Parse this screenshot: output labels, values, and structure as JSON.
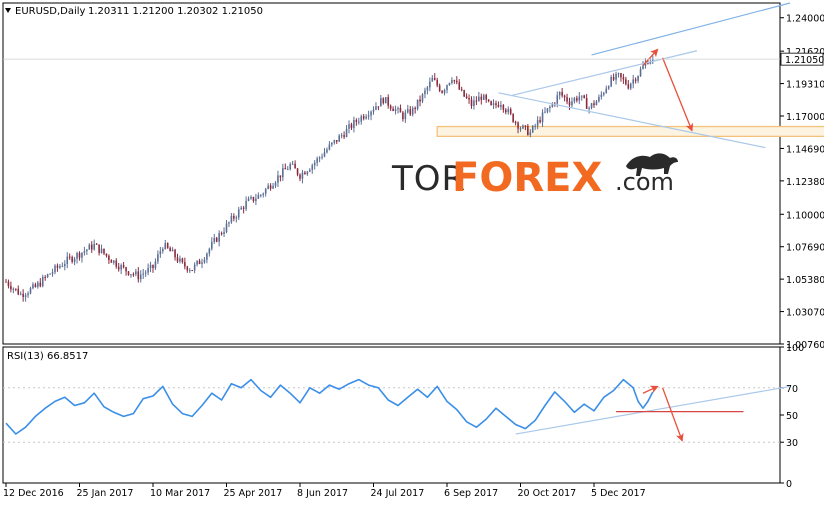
{
  "chart_data": [
    {
      "type": "candlestick",
      "symbol_label": "EURUSD,Daily",
      "ohlc_label": "1.20311 1.21200 1.20302 1.21050",
      "current_price": 1.2105,
      "current_price_label": "1.21050",
      "ylim": [
        1.0076,
        1.2505
      ],
      "y_ticks": [
        "1.24000",
        "1.21620",
        "1.19310",
        "1.17000",
        "1.14690",
        "1.12380",
        "1.10000",
        "1.07690",
        "1.05380",
        "1.03070",
        "1.00760"
      ],
      "y_tick_values": [
        1.24,
        1.2162,
        1.1931,
        1.17,
        1.1469,
        1.1238,
        1.1,
        1.0769,
        1.0538,
        1.0307,
        1.0076
      ],
      "x_ticks": [
        "12 Dec 2016",
        "25 Jan 2017",
        "10 Mar 2017",
        "25 Apr 2017",
        "8 Jun 2017",
        "24 Jul 2017",
        "6 Sep 2017",
        "20 Oct 2017",
        "5 Dec 2017"
      ],
      "x_tick_index": [
        0,
        30,
        60,
        90,
        120,
        150,
        180,
        210,
        240
      ],
      "close_path": [
        [
          0,
          1.052
        ],
        [
          6,
          1.043
        ],
        [
          12,
          1.048
        ],
        [
          18,
          1.058
        ],
        [
          24,
          1.066
        ],
        [
          30,
          1.072
        ],
        [
          36,
          1.078
        ],
        [
          42,
          1.069
        ],
        [
          48,
          1.061
        ],
        [
          54,
          1.056
        ],
        [
          60,
          1.062
        ],
        [
          64,
          1.078
        ],
        [
          68,
          1.072
        ],
        [
          72,
          1.064
        ],
        [
          76,
          1.061
        ],
        [
          80,
          1.068
        ],
        [
          86,
          1.083
        ],
        [
          92,
          1.096
        ],
        [
          98,
          1.108
        ],
        [
          104,
          1.114
        ],
        [
          110,
          1.125
        ],
        [
          116,
          1.135
        ],
        [
          120,
          1.128
        ],
        [
          126,
          1.137
        ],
        [
          132,
          1.148
        ],
        [
          138,
          1.158
        ],
        [
          144,
          1.168
        ],
        [
          150,
          1.176
        ],
        [
          154,
          1.182
        ],
        [
          158,
          1.176
        ],
        [
          162,
          1.17
        ],
        [
          166,
          1.174
        ],
        [
          170,
          1.184
        ],
        [
          174,
          1.196
        ],
        [
          178,
          1.188
        ],
        [
          182,
          1.198
        ],
        [
          186,
          1.186
        ],
        [
          190,
          1.178
        ],
        [
          194,
          1.184
        ],
        [
          198,
          1.176
        ],
        [
          202,
          1.18
        ],
        [
          206,
          1.17
        ],
        [
          210,
          1.162
        ],
        [
          214,
          1.158
        ],
        [
          218,
          1.168
        ],
        [
          222,
          1.176
        ],
        [
          226,
          1.186
        ],
        [
          230,
          1.18
        ],
        [
          234,
          1.184
        ],
        [
          238,
          1.176
        ],
        [
          242,
          1.182
        ],
        [
          246,
          1.194
        ],
        [
          250,
          1.198
        ],
        [
          254,
          1.192
        ],
        [
          258,
          1.2
        ],
        [
          262,
          1.21
        ],
        [
          264,
          1.2105
        ]
      ],
      "annotations": [
        {
          "type": "ray",
          "from": [
            239,
            1.2135
          ],
          "to": [
            320,
            1.2505
          ],
          "color": "#7fb2e6"
        },
        {
          "type": "line",
          "from": [
            206,
            1.1845
          ],
          "to": [
            282,
            1.2165
          ],
          "color": "#a9c8ea"
        },
        {
          "type": "line",
          "from": [
            201,
            1.1865
          ],
          "to": [
            310,
            1.1475
          ],
          "color": "#a9c8ea"
        },
        {
          "type": "zone",
          "y": [
            1.1555,
            1.1625
          ],
          "x": [
            176,
            350
          ],
          "color": "#f2c27a"
        },
        {
          "type": "arrow",
          "from": [
            260,
            1.206
          ],
          "to": [
            266,
            1.2175
          ],
          "color": "#e8503c"
        },
        {
          "type": "arrow",
          "from": [
            268,
            1.2115
          ],
          "to": [
            280,
            1.1595
          ],
          "color": "#e8503c"
        }
      ]
    },
    {
      "type": "line",
      "label": "RSI(13) 66.8517",
      "ylim": [
        0,
        100
      ],
      "y_ticks": [
        "100",
        "70",
        "50",
        "30",
        "0"
      ],
      "y_tick_values": [
        100,
        70,
        50,
        30,
        0
      ],
      "series": [
        {
          "values": [
            [
              0,
              44
            ],
            [
              4,
              36
            ],
            [
              8,
              41
            ],
            [
              12,
              49
            ],
            [
              16,
              55
            ],
            [
              20,
              60
            ],
            [
              24,
              63
            ],
            [
              28,
              57
            ],
            [
              32,
              59
            ],
            [
              36,
              66
            ],
            [
              40,
              56
            ],
            [
              44,
              52
            ],
            [
              48,
              49
            ],
            [
              52,
              51
            ],
            [
              56,
              62
            ],
            [
              60,
              64
            ],
            [
              64,
              71
            ],
            [
              68,
              58
            ],
            [
              72,
              51
            ],
            [
              76,
              49
            ],
            [
              80,
              57
            ],
            [
              84,
              66
            ],
            [
              88,
              61
            ],
            [
              92,
              73
            ],
            [
              96,
              70
            ],
            [
              100,
              76
            ],
            [
              104,
              68
            ],
            [
              108,
              63
            ],
            [
              112,
              72
            ],
            [
              116,
              66
            ],
            [
              120,
              59
            ],
            [
              124,
              70
            ],
            [
              128,
              66
            ],
            [
              132,
              72
            ],
            [
              136,
              69
            ],
            [
              140,
              73
            ],
            [
              144,
              76
            ],
            [
              148,
              72
            ],
            [
              152,
              70
            ],
            [
              156,
              61
            ],
            [
              160,
              57
            ],
            [
              164,
              63
            ],
            [
              168,
              69
            ],
            [
              172,
              63
            ],
            [
              176,
              71
            ],
            [
              180,
              60
            ],
            [
              184,
              54
            ],
            [
              188,
              45
            ],
            [
              192,
              41
            ],
            [
              196,
              47
            ],
            [
              200,
              55
            ],
            [
              204,
              49
            ],
            [
              208,
              43
            ],
            [
              212,
              40
            ],
            [
              216,
              46
            ],
            [
              220,
              57
            ],
            [
              224,
              67
            ],
            [
              228,
              60
            ],
            [
              232,
              52
            ],
            [
              236,
              58
            ],
            [
              240,
              53
            ],
            [
              244,
              63
            ],
            [
              248,
              68
            ],
            [
              252,
              76
            ],
            [
              256,
              70
            ],
            [
              258,
              60
            ],
            [
              260,
              55
            ],
            [
              262,
              60
            ],
            [
              264,
              67
            ]
          ]
        }
      ],
      "annotations": [
        {
          "type": "line",
          "from": [
            208,
            36
          ],
          "to": [
            320,
            71
          ],
          "color": "#a9c8ea"
        },
        {
          "type": "hline",
          "y": 52.5,
          "x": [
            249,
            301
          ],
          "color": "#d64541"
        },
        {
          "type": "arrow",
          "from": [
            260,
            66
          ],
          "to": [
            266,
            71
          ],
          "color": "#e8503c"
        },
        {
          "type": "arrow",
          "from": [
            268,
            70
          ],
          "to": [
            276,
            31
          ],
          "color": "#e8503c"
        }
      ]
    }
  ],
  "watermark": {
    "prefix": "TOR",
    "main": "FOREX",
    "suffix": ".com"
  },
  "colors": {
    "bull": "#5b6f95",
    "bear": "#8a2a3d",
    "rsi": "#3b8fe8",
    "axis": "#000000",
    "text": "#000000",
    "orange": "#f26a21",
    "dark": "#2a2a2a"
  }
}
